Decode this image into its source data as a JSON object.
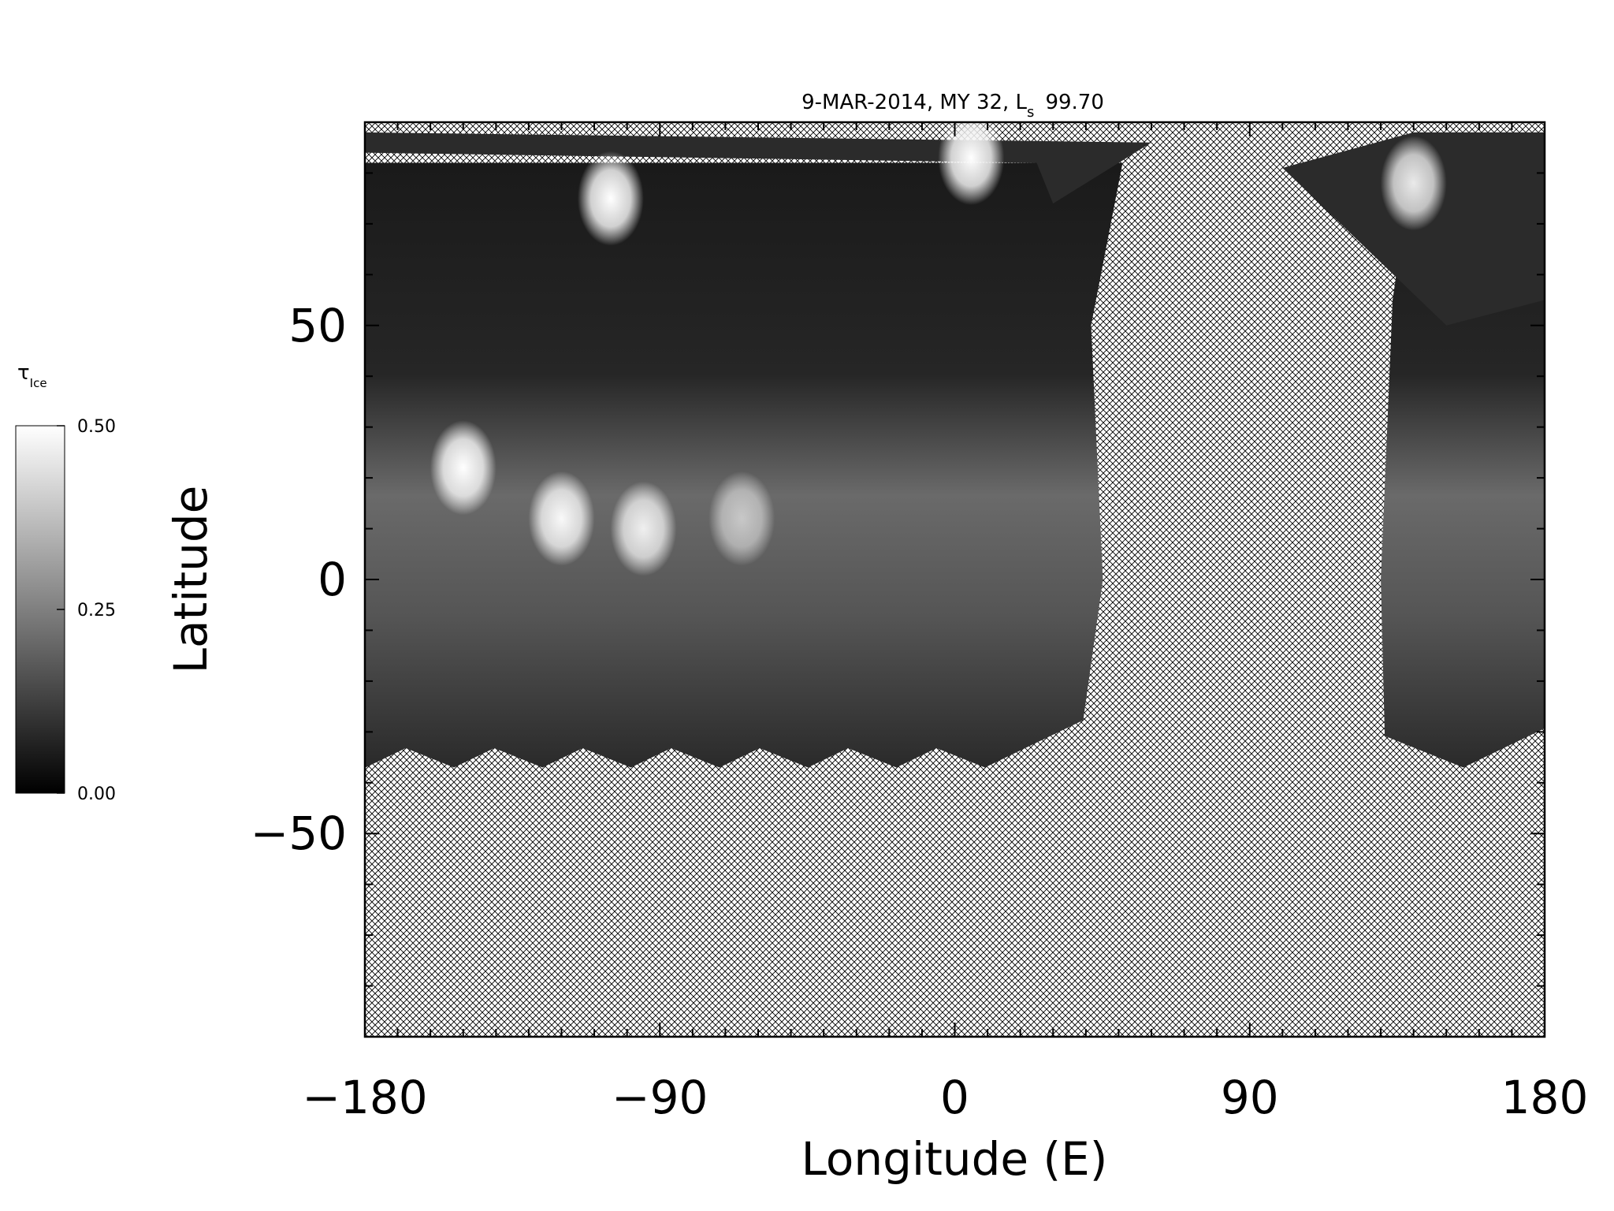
{
  "chart_data": {
    "type": "heatmap",
    "title": "9-MAR-2014, MY 32,  L",
    "title_subscript": "s",
    "title_value": "99.70",
    "xlabel": "Longitude (E)",
    "ylabel": "Latitude",
    "xlim": [
      -180,
      180
    ],
    "ylim": [
      -90,
      90
    ],
    "x_tick_labels": [
      {
        "value": -180,
        "label": "−180"
      },
      {
        "value": -90,
        "label": "−90"
      },
      {
        "value": 0,
        "label": "0"
      },
      {
        "value": 90,
        "label": "90"
      },
      {
        "value": 180,
        "label": "180"
      }
    ],
    "y_tick_labels": [
      {
        "value": 50,
        "label": "50"
      },
      {
        "value": 0,
        "label": "0"
      },
      {
        "value": -50,
        "label": "−50"
      }
    ],
    "x_minor_step": 10,
    "y_minor_step": 10,
    "missing_data_pattern": "crosshatch",
    "colorbar": {
      "label": "τ",
      "label_subscript": "Ice",
      "min": 0.0,
      "max": 0.5,
      "colors": [
        "#000000",
        "#ffffff"
      ],
      "tick_labels": [
        {
          "value": 0.5,
          "label": "0.50"
        },
        {
          "value": 0.25,
          "label": "0.25"
        },
        {
          "value": 0.0,
          "label": "0.00"
        }
      ]
    },
    "swaths": [
      {
        "lon_center": -175,
        "lat_min": -37,
        "lat_max": 82
      },
      {
        "lon_center": -148,
        "lat_min": -37,
        "lat_max": 82
      },
      {
        "lon_center": -121,
        "lat_min": -37,
        "lat_max": 82
      },
      {
        "lon_center": -94,
        "lat_min": -37,
        "lat_max": 82
      },
      {
        "lon_center": -67,
        "lat_min": -37,
        "lat_max": 82
      },
      {
        "lon_center": -40,
        "lat_min": -37,
        "lat_max": 82
      },
      {
        "lon_center": -13,
        "lat_min": -37,
        "lat_max": 82
      },
      {
        "lon_center": 14,
        "lat_min": -37,
        "lat_max": 82
      },
      {
        "lon_center": 160,
        "lat_min": -37,
        "lat_max": 82
      }
    ],
    "ice_clouds": [
      {
        "lon": -150,
        "lat": 22,
        "tau": 0.5
      },
      {
        "lon": -120,
        "lat": 12,
        "tau": 0.48
      },
      {
        "lon": -95,
        "lat": 10,
        "tau": 0.45
      },
      {
        "lon": -65,
        "lat": 12,
        "tau": 0.32
      },
      {
        "lon": -105,
        "lat": 75,
        "tau": 0.5
      },
      {
        "lon": 5,
        "lat": 83,
        "tau": 0.5
      },
      {
        "lon": 140,
        "lat": 78,
        "tau": 0.45
      }
    ]
  }
}
